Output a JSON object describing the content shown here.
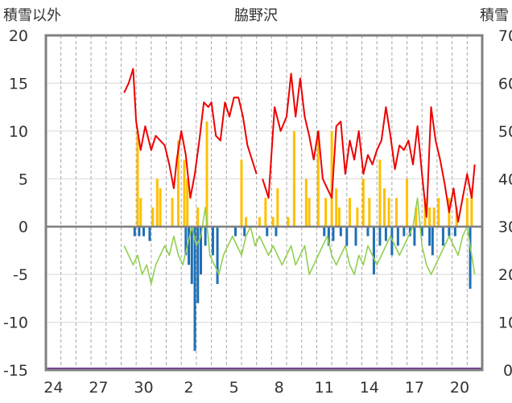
{
  "chart_data": {
    "type": "line",
    "title": "脇野沢",
    "ylabel_left": "積雪以外",
    "ylabel_right": "積雪",
    "x_tick_labels": [
      "24",
      "27",
      "30",
      "2",
      "5",
      "8",
      "11",
      "14",
      "17",
      "20"
    ],
    "x_range_days": [
      0,
      29
    ],
    "ylim_left": [
      -15,
      20
    ],
    "ylim_right": [
      0,
      70
    ],
    "y_ticks_left": [
      "20",
      "15",
      "10",
      "5",
      "0",
      "-5",
      "-10",
      "-15"
    ],
    "y_ticks_right": [
      "70",
      "60",
      "50",
      "40",
      "30",
      "20",
      "10",
      "0"
    ],
    "grid": "vertical-dashed-daily",
    "colors": {
      "snow_depth": "#ee0000",
      "temperature": "#92d050",
      "precipitation": "#ffc000",
      "negative_bars": "#1f6fb4",
      "baseline": "#808080",
      "bottom_band": "#7030a0"
    },
    "series": [
      {
        "key": "snow_depth",
        "axis": "right",
        "x": [
          5.2,
          5.5,
          5.8,
          6.0,
          6.3,
          6.6,
          7.0,
          7.3,
          7.6,
          7.9,
          8.2,
          8.5,
          8.7,
          9.0,
          9.3,
          9.6,
          9.9,
          10.2,
          10.5,
          10.8,
          11.0,
          11.3,
          11.6,
          11.9,
          12.2,
          12.5,
          12.8,
          13.1,
          13.4,
          13.7,
          14.0
        ],
        "y": [
          58,
          60,
          63,
          52,
          46,
          51,
          46,
          49,
          48,
          47,
          43,
          38,
          44,
          50,
          45,
          36,
          41,
          48,
          56,
          55,
          56,
          49,
          48,
          56,
          53,
          57,
          57,
          53,
          47,
          44,
          41
        ]
      },
      {
        "key": "snow_depth_2",
        "axis": "right",
        "x": [
          14.4,
          14.8,
          15.2,
          15.6,
          16.0,
          16.3,
          16.6,
          16.9,
          17.2,
          17.5,
          17.8,
          18.1,
          18.4,
          18.7,
          19.0,
          19.3,
          19.6,
          19.9,
          20.2,
          20.5,
          20.8,
          21.1,
          21.4,
          21.7,
          22.0,
          22.3,
          22.6,
          22.9,
          23.2,
          23.5,
          23.8,
          24.1,
          24.4,
          24.7,
          25.0,
          25.3,
          25.6,
          25.9,
          26.2,
          26.5,
          26.8,
          27.1,
          27.4,
          27.7,
          28.0,
          28.3,
          28.5
        ],
        "y": [
          40,
          36,
          55,
          50,
          53,
          62,
          53,
          61,
          53,
          49,
          44,
          50,
          40,
          38,
          36,
          51,
          52,
          41,
          48,
          44,
          50,
          41,
          45,
          43,
          46,
          48,
          55,
          49,
          42,
          47,
          46,
          48,
          43,
          51,
          41,
          32,
          55,
          48,
          44,
          39,
          33,
          38,
          31,
          36,
          41,
          36,
          43
        ]
      },
      {
        "key": "temperature",
        "axis": "left",
        "x": [
          5.2,
          5.5,
          5.8,
          6.1,
          6.4,
          6.7,
          7.0,
          7.3,
          7.6,
          7.9,
          8.2,
          8.5,
          8.8,
          9.1,
          9.4,
          9.7,
          10.0,
          10.3,
          10.6,
          10.9,
          11.2,
          11.5,
          11.8,
          12.1,
          12.4,
          12.7,
          13.0,
          13.3,
          13.6,
          13.9,
          14.2,
          14.5,
          14.8,
          15.1,
          15.4,
          15.7,
          16.0,
          16.3,
          16.6,
          16.9,
          17.2,
          17.5,
          17.8,
          18.1,
          18.4,
          18.7,
          19.0,
          19.3,
          19.6,
          19.9,
          20.2,
          20.5,
          20.8,
          21.1,
          21.4,
          21.7,
          22.0,
          22.3,
          22.6,
          22.9,
          23.2,
          23.5,
          23.8,
          24.1,
          24.4,
          24.7,
          25.0,
          25.3,
          25.6,
          25.9,
          26.2,
          26.5,
          26.8,
          27.1,
          27.4,
          27.7,
          28.0,
          28.3,
          28.5
        ],
        "y": [
          -2,
          -3,
          -4,
          -3,
          -5,
          -4,
          -6,
          -4,
          -3,
          -2,
          -3,
          -1,
          -3,
          -4,
          -2,
          0,
          -2,
          -1,
          2,
          -3,
          -4,
          -5,
          -3,
          -2,
          -1,
          -2,
          -3,
          -1,
          0,
          -2,
          -1,
          -2,
          -3,
          -2,
          -3,
          -4,
          -3,
          -2,
          -4,
          -3,
          -2,
          -5,
          -4,
          -3,
          -2,
          -1,
          -3,
          -4,
          -3,
          -2,
          -4,
          -5,
          -3,
          -4,
          -2,
          -3,
          -4,
          -3,
          -2,
          -1,
          -2,
          -3,
          -2,
          -1,
          0,
          3,
          -2,
          -4,
          -5,
          -4,
          -3,
          -2,
          -1,
          -2,
          -3,
          -1,
          0,
          -3,
          -5
        ]
      }
    ],
    "bars": [
      {
        "key": "precipitation",
        "axis": "left",
        "x": [
          6.1,
          6.3,
          7.1,
          7.4,
          7.6,
          8.4,
          8.8,
          9.2,
          9.4,
          10.1,
          10.7,
          13.0,
          13.3,
          14.2,
          14.6,
          15.1,
          15.4,
          16.1,
          16.5,
          17.3,
          17.5,
          18.1,
          18.6,
          19.0,
          19.3,
          19.5,
          20.2,
          20.7,
          21.1,
          21.5,
          22.2,
          22.5,
          22.8,
          23.3,
          24.0,
          24.6,
          25.2,
          25.5,
          25.8,
          26.1,
          26.8,
          27.3,
          28.0,
          28.3
        ],
        "y": [
          10,
          3,
          2,
          5,
          4,
          3,
          9,
          7,
          5,
          2,
          11,
          7,
          1,
          1,
          3,
          1,
          4,
          1,
          10,
          5,
          3,
          10,
          3,
          10,
          4,
          2,
          3,
          2,
          5,
          3,
          7,
          4,
          3,
          3,
          5,
          2,
          3,
          2,
          2,
          3,
          3,
          2,
          3,
          4
        ]
      },
      {
        "key": "negative_bars",
        "axis": "left",
        "x": [
          5.9,
          6.2,
          6.5,
          6.9,
          9.3,
          9.5,
          9.7,
          9.9,
          10.1,
          10.3,
          10.6,
          11.1,
          11.4,
          12.6,
          13.2,
          14.7,
          15.3,
          18.5,
          18.8,
          19.1,
          19.6,
          20.0,
          20.6,
          21.4,
          21.8,
          22.2,
          22.6,
          23.0,
          23.4,
          23.8,
          24.2,
          24.5,
          25.0,
          25.5,
          25.7,
          26.4,
          26.8,
          27.2,
          28.2
        ],
        "y": [
          -1,
          -1,
          -1,
          -1.5,
          -3,
          -4,
          -6,
          -13,
          -8,
          -5,
          -2,
          -3,
          -6,
          -1,
          -1,
          -1,
          -1,
          -1,
          -2,
          -1.5,
          -1,
          -2,
          -2,
          -1,
          -5,
          -2,
          -1.5,
          -3,
          -2,
          -1,
          -1,
          -2,
          -1,
          -2,
          -3,
          -2,
          -1,
          -1,
          -6.5
        ]
      }
    ]
  }
}
